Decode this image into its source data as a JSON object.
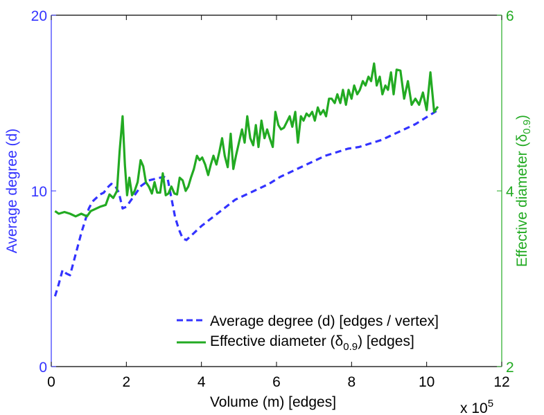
{
  "chart_data": {
    "type": "line",
    "xlabel": "Volume (m) [edges]",
    "x_multiplier": {
      "base": "x 10",
      "exp": "5"
    },
    "x_ticks": [
      "0",
      "2",
      "4",
      "6",
      "8",
      "10",
      "12"
    ],
    "xlim": [
      0,
      12
    ],
    "y_left": {
      "label": "Average degree (d)",
      "ticks": [
        "0",
        "10",
        "20"
      ],
      "lim": [
        0,
        20
      ],
      "color": "#3333ff"
    },
    "y_right": {
      "label_main": "Effective diameter (",
      "label_delta": "δ",
      "label_sub": "0.9",
      "label_end": ")",
      "ticks": [
        "2",
        "4",
        "6"
      ],
      "lim": [
        2,
        6
      ],
      "color": "#22aa22"
    },
    "legend": {
      "position": "bottom-right",
      "entries": [
        {
          "text": "Average degree (d) [edges / vertex]"
        },
        {
          "text_main": "Effective diameter (",
          "text_delta": "δ",
          "text_sub": "0.9",
          "text_end": ") [edges]"
        }
      ]
    },
    "series": [
      {
        "axis": "left",
        "style": "dashed",
        "color": "#3333ff",
        "x": [
          0.1,
          0.2,
          0.3,
          0.4,
          0.5,
          0.6,
          0.7,
          0.8,
          0.9,
          1.0,
          1.1,
          1.2,
          1.3,
          1.4,
          1.5,
          1.6,
          1.7,
          1.8,
          1.9,
          2.0,
          2.2,
          2.4,
          2.6,
          2.8,
          3.0,
          3.1,
          3.2,
          3.3,
          3.4,
          3.5,
          3.6,
          3.8,
          4.0,
          4.3,
          4.6,
          4.9,
          5.2,
          5.5,
          5.8,
          6.1,
          6.4,
          6.7,
          7.0,
          7.3,
          7.6,
          7.9,
          8.2,
          8.5,
          8.8,
          9.1,
          9.4,
          9.7,
          10.0,
          10.3
        ],
        "y": [
          4.0,
          4.7,
          5.5,
          5.3,
          5.2,
          6.0,
          6.8,
          7.6,
          8.3,
          9.0,
          9.4,
          9.6,
          9.8,
          9.9,
          10.2,
          10.4,
          10.3,
          9.9,
          9.0,
          9.1,
          9.7,
          10.3,
          10.6,
          10.7,
          10.8,
          10.7,
          9.6,
          8.5,
          7.8,
          7.3,
          7.2,
          7.6,
          8.0,
          8.5,
          9.0,
          9.5,
          9.8,
          10.1,
          10.4,
          10.8,
          11.1,
          11.4,
          11.7,
          12.0,
          12.2,
          12.4,
          12.5,
          12.7,
          12.9,
          13.2,
          13.5,
          13.8,
          14.2,
          14.6
        ]
      },
      {
        "axis": "right",
        "style": "solid",
        "color": "#22aa22",
        "x": [
          0.1,
          0.2,
          0.35,
          0.5,
          0.65,
          0.8,
          0.95,
          1.05,
          1.15,
          1.3,
          1.45,
          1.55,
          1.65,
          1.75,
          1.82,
          1.9,
          1.96,
          2.02,
          2.08,
          2.15,
          2.22,
          2.3,
          2.38,
          2.45,
          2.52,
          2.6,
          2.68,
          2.75,
          2.82,
          2.9,
          2.97,
          3.05,
          3.12,
          3.2,
          3.28,
          3.35,
          3.42,
          3.5,
          3.58,
          3.65,
          3.72,
          3.8,
          3.88,
          3.95,
          4.02,
          4.1,
          4.18,
          4.25,
          4.32,
          4.4,
          4.48,
          4.55,
          4.62,
          4.7,
          4.78,
          4.85,
          4.92,
          5.0,
          5.08,
          5.15,
          5.22,
          5.3,
          5.38,
          5.45,
          5.52,
          5.6,
          5.68,
          5.75,
          5.82,
          5.9,
          5.97,
          6.05,
          6.12,
          6.2,
          6.27,
          6.35,
          6.42,
          6.5,
          6.57,
          6.65,
          6.72,
          6.8,
          6.87,
          6.95,
          7.02,
          7.1,
          7.17,
          7.25,
          7.32,
          7.4,
          7.47,
          7.55,
          7.62,
          7.7,
          7.77,
          7.85,
          7.92,
          8.0,
          8.07,
          8.15,
          8.22,
          8.3,
          8.37,
          8.45,
          8.52,
          8.6,
          8.67,
          8.75,
          8.82,
          8.9,
          8.97,
          9.05,
          9.12,
          9.2,
          9.3,
          9.4,
          9.5,
          9.6,
          9.7,
          9.8,
          9.9,
          10.0,
          10.1,
          10.2,
          10.3
        ],
        "y": [
          3.77,
          3.74,
          3.76,
          3.74,
          3.71,
          3.74,
          3.71,
          3.77,
          3.79,
          3.82,
          3.84,
          3.96,
          3.92,
          4.0,
          4.45,
          4.85,
          4.3,
          3.95,
          4.15,
          3.95,
          4.0,
          4.1,
          4.35,
          4.28,
          4.1,
          4.05,
          3.97,
          4.1,
          3.98,
          3.98,
          4.2,
          3.95,
          3.97,
          4.05,
          3.97,
          3.96,
          4.15,
          4.12,
          4.0,
          4.05,
          4.15,
          4.25,
          4.4,
          4.35,
          4.38,
          4.3,
          4.18,
          4.3,
          4.4,
          4.3,
          4.45,
          4.6,
          4.4,
          4.27,
          4.65,
          4.25,
          4.4,
          4.55,
          4.7,
          4.55,
          4.85,
          4.6,
          4.52,
          4.75,
          4.5,
          4.8,
          4.6,
          4.7,
          4.6,
          4.5,
          4.9,
          4.75,
          4.7,
          4.72,
          4.78,
          4.85,
          4.73,
          4.9,
          4.55,
          4.85,
          4.8,
          4.88,
          4.85,
          4.9,
          4.8,
          4.95,
          4.87,
          4.92,
          4.85,
          5.05,
          5.05,
          5.0,
          5.1,
          5.0,
          5.15,
          4.98,
          5.15,
          5.05,
          5.2,
          5.1,
          5.15,
          5.25,
          5.2,
          5.3,
          5.25,
          5.45,
          5.2,
          5.3,
          5.1,
          5.2,
          5.15,
          5.35,
          5.1,
          5.38,
          5.37,
          5.05,
          5.25,
          4.98,
          5.05,
          4.98,
          5.12,
          4.92,
          5.35,
          4.9,
          4.96
        ]
      }
    ]
  }
}
